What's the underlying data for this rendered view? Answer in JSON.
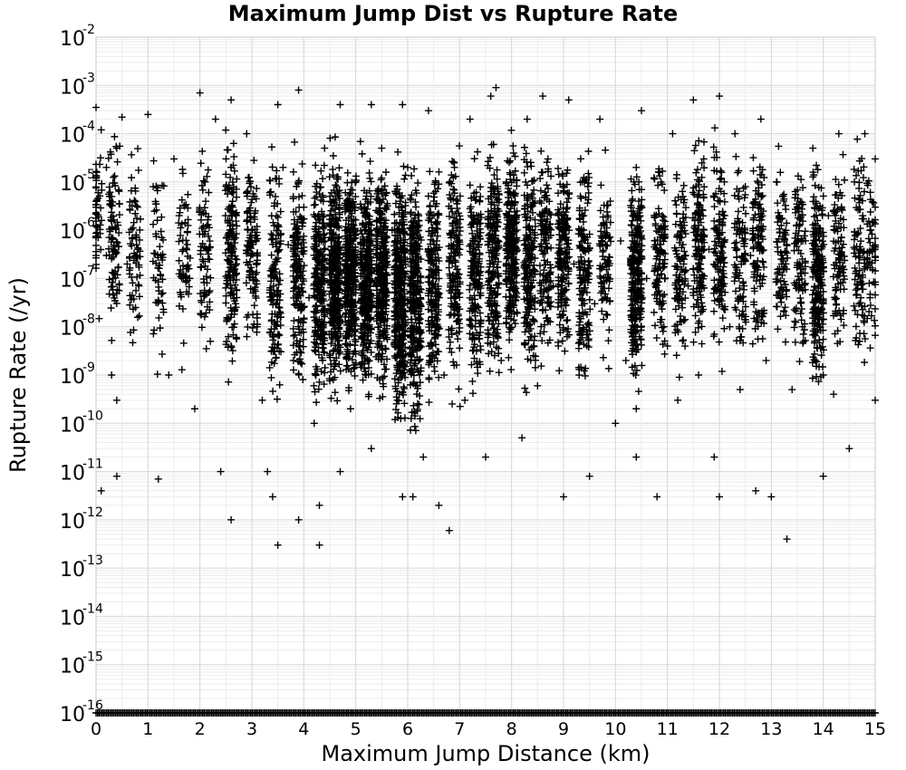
{
  "chart_data": {
    "type": "scatter",
    "title": "Maximum Jump Dist vs Rupture Rate",
    "xlabel": "Maximum Jump Distance (km)",
    "ylabel": "Rupture Rate (/yr)",
    "xlim": [
      0,
      15
    ],
    "ylim": [
      1e-16,
      0.01
    ],
    "y_scale": "log",
    "grid": true,
    "marker": "+",
    "marker_color": "#000000",
    "x_ticks": [
      "0",
      "1",
      "2",
      "3",
      "4",
      "5",
      "6",
      "7",
      "8",
      "9",
      "10",
      "11",
      "12",
      "13",
      "14",
      "15"
    ],
    "y_ticks": [
      {
        "base": "10",
        "exp": "-2"
      },
      {
        "base": "10",
        "exp": "-3"
      },
      {
        "base": "10",
        "exp": "-4"
      },
      {
        "base": "10",
        "exp": "-5"
      },
      {
        "base": "10",
        "exp": "-6"
      },
      {
        "base": "10",
        "exp": "-7"
      },
      {
        "base": "10",
        "exp": "-8"
      },
      {
        "base": "10",
        "exp": "-9"
      },
      {
        "base": "10",
        "exp": "-10"
      },
      {
        "base": "10",
        "exp": "-11"
      },
      {
        "base": "10",
        "exp": "-12"
      },
      {
        "base": "10",
        "exp": "-13"
      },
      {
        "base": "10",
        "exp": "-14"
      },
      {
        "base": "10",
        "exp": "-15"
      },
      {
        "base": "10",
        "exp": "-16"
      }
    ],
    "series": [
      {
        "points": [
          [
            0.0,
            0.00035
          ],
          [
            0.1,
            0.00012
          ],
          [
            0.2,
            2e-05
          ],
          [
            0.3,
            5e-06
          ],
          [
            0.4,
            5e-05
          ],
          [
            0.5,
            0.00022
          ],
          [
            0.2,
            3e-07
          ],
          [
            0.3,
            1e-09
          ],
          [
            0.4,
            3e-10
          ],
          [
            0.1,
            4e-12
          ],
          [
            0.4,
            8e-12
          ],
          [
            0.6,
            2e-07
          ],
          [
            0.8,
            3e-06
          ],
          [
            1.0,
            0.00025
          ],
          [
            1.1,
            8e-06
          ],
          [
            1.2,
            7e-12
          ],
          [
            1.3,
            2e-08
          ],
          [
            1.4,
            1e-09
          ],
          [
            1.5,
            3e-05
          ],
          [
            1.6,
            2e-06
          ],
          [
            1.8,
            1e-07
          ],
          [
            1.9,
            2e-10
          ],
          [
            2.0,
            0.0007
          ],
          [
            2.1,
            1e-05
          ],
          [
            2.2,
            5e-09
          ],
          [
            2.3,
            0.0002
          ],
          [
            2.4,
            1e-11
          ],
          [
            2.6,
            0.0005
          ],
          [
            2.6,
            1e-12
          ],
          [
            2.6,
            2e-05
          ],
          [
            2.6,
            3e-07
          ],
          [
            2.6,
            4e-09
          ],
          [
            2.7,
            2e-06
          ],
          [
            2.9,
            0.0001
          ],
          [
            3.0,
            1e-06
          ],
          [
            3.1,
            1e-08
          ],
          [
            3.2,
            3e-10
          ],
          [
            3.3,
            1e-11
          ],
          [
            3.4,
            3e-12
          ],
          [
            3.5,
            3e-13
          ],
          [
            3.5,
            0.0004
          ],
          [
            3.6,
            2e-05
          ],
          [
            3.7,
            5e-07
          ],
          [
            3.8,
            2e-09
          ],
          [
            3.9,
            0.0008
          ],
          [
            3.9,
            1e-12
          ],
          [
            4.0,
            3e-06
          ],
          [
            4.1,
            4e-08
          ],
          [
            4.2,
            1e-10
          ],
          [
            4.3,
            2e-12
          ],
          [
            4.3,
            3e-13
          ],
          [
            4.4,
            5e-05
          ],
          [
            4.5,
            2e-07
          ],
          [
            4.6,
            8e-09
          ],
          [
            4.7,
            0.0004
          ],
          [
            4.7,
            1e-11
          ],
          [
            4.8,
            6e-06
          ],
          [
            4.9,
            2e-10
          ],
          [
            5.0,
            1e-05
          ],
          [
            5.0,
            5e-08
          ],
          [
            5.1,
            3e-06
          ],
          [
            5.2,
            1e-09
          ],
          [
            5.3,
            0.0004
          ],
          [
            5.3,
            3e-11
          ],
          [
            5.4,
            2e-07
          ],
          [
            5.5,
            5e-05
          ],
          [
            5.6,
            6e-09
          ],
          [
            5.7,
            1e-06
          ],
          [
            5.8,
            3e-10
          ],
          [
            5.9,
            0.0004
          ],
          [
            5.9,
            3e-12
          ],
          [
            6.0,
            2e-05
          ],
          [
            6.0,
            3e-08
          ],
          [
            6.1,
            8e-07
          ],
          [
            6.1,
            3e-12
          ],
          [
            6.2,
            5e-09
          ],
          [
            6.3,
            2e-11
          ],
          [
            6.4,
            0.0003
          ],
          [
            6.5,
            4e-06
          ],
          [
            6.6,
            1e-07
          ],
          [
            6.6,
            2e-12
          ],
          [
            6.7,
            1e-09
          ],
          [
            6.8,
            6e-13
          ],
          [
            6.9,
            2e-05
          ],
          [
            7.0,
            4e-07
          ],
          [
            7.1,
            3e-10
          ],
          [
            7.2,
            0.0002
          ],
          [
            7.3,
            1e-08
          ],
          [
            7.4,
            5e-06
          ],
          [
            7.5,
            2e-11
          ],
          [
            7.6,
            0.0006
          ],
          [
            7.7,
            0.0009
          ],
          [
            7.7,
            3e-07
          ],
          [
            7.8,
            2e-09
          ],
          [
            7.9,
            1e-05
          ],
          [
            8.0,
            4e-06
          ],
          [
            8.1,
            2e-08
          ],
          [
            8.2,
            5e-11
          ],
          [
            8.3,
            0.0002
          ],
          [
            8.4,
            1e-06
          ],
          [
            8.5,
            6e-10
          ],
          [
            8.6,
            0.0006
          ],
          [
            8.7,
            3e-05
          ],
          [
            8.8,
            7e-08
          ],
          [
            8.9,
            4e-09
          ],
          [
            9.0,
            2e-06
          ],
          [
            9.0,
            3e-12
          ],
          [
            9.1,
            0.0005
          ],
          [
            9.2,
            2e-07
          ],
          [
            9.3,
            1e-09
          ],
          [
            9.4,
            1e-05
          ],
          [
            9.5,
            8e-12
          ],
          [
            9.6,
            3e-08
          ],
          [
            9.7,
            0.0002
          ],
          [
            9.9,
            4e-06
          ],
          [
            10.0,
            1e-10
          ],
          [
            10.1,
            6e-07
          ],
          [
            10.2,
            2e-09
          ],
          [
            10.4,
            2e-05
          ],
          [
            10.4,
            1e-06
          ],
          [
            10.4,
            5e-08
          ],
          [
            10.4,
            3e-09
          ],
          [
            10.4,
            2e-10
          ],
          [
            10.4,
            2e-11
          ],
          [
            10.5,
            0.0003
          ],
          [
            10.6,
            1e-07
          ],
          [
            10.8,
            3e-12
          ],
          [
            10.9,
            2e-06
          ],
          [
            11.0,
            4e-09
          ],
          [
            11.1,
            0.0001
          ],
          [
            11.2,
            3e-10
          ],
          [
            11.3,
            5e-06
          ],
          [
            11.4,
            7e-08
          ],
          [
            11.5,
            0.0005
          ],
          [
            11.6,
            1e-09
          ],
          [
            11.7,
            3e-05
          ],
          [
            11.8,
            4e-07
          ],
          [
            11.9,
            2e-11
          ],
          [
            12.0,
            0.0006
          ],
          [
            12.0,
            3e-12
          ],
          [
            12.1,
            2e-06
          ],
          [
            12.2,
            1e-08
          ],
          [
            12.3,
            0.0001
          ],
          [
            12.4,
            5e-10
          ],
          [
            12.5,
            8e-06
          ],
          [
            12.6,
            3e-07
          ],
          [
            12.7,
            4e-12
          ],
          [
            12.8,
            0.0002
          ],
          [
            12.9,
            2e-09
          ],
          [
            13.0,
            3e-12
          ],
          [
            13.1,
            1e-05
          ],
          [
            13.2,
            2e-07
          ],
          [
            13.3,
            4e-13
          ],
          [
            13.4,
            5e-10
          ],
          [
            13.5,
            3e-06
          ],
          [
            13.6,
            1e-08
          ],
          [
            13.8,
            5e-05
          ],
          [
            13.9,
            1e-07
          ],
          [
            14.0,
            1e-09
          ],
          [
            14.0,
            8e-12
          ],
          [
            14.1,
            2e-06
          ],
          [
            14.2,
            4e-10
          ],
          [
            14.3,
            0.0001
          ],
          [
            14.4,
            6e-08
          ],
          [
            14.5,
            3e-11
          ],
          [
            14.6,
            1e-05
          ],
          [
            14.7,
            5e-09
          ],
          [
            14.8,
            0.0001
          ],
          [
            14.9,
            1e-06
          ],
          [
            14.9,
            4e-08
          ],
          [
            15.0,
            3e-10
          ],
          [
            15.0,
            3e-05
          ]
        ]
      }
    ],
    "clusters": [
      {
        "x": 0.0,
        "ymin": 1e-09,
        "ymax": 0.0004,
        "count": 50
      },
      {
        "x": 0.35,
        "ymin": 1e-10,
        "ymax": 0.0003,
        "count": 90
      },
      {
        "x": 0.75,
        "ymin": 1e-10,
        "ymax": 0.0002,
        "count": 70
      },
      {
        "x": 1.2,
        "ymin": 1e-10,
        "ymax": 0.0001,
        "count": 55
      },
      {
        "x": 1.7,
        "ymin": 1e-10,
        "ymax": 0.0001,
        "count": 60
      },
      {
        "x": 2.1,
        "ymin": 1e-10,
        "ymax": 0.0002,
        "count": 80
      },
      {
        "x": 2.6,
        "ymin": 1e-11,
        "ymax": 0.0003,
        "count": 170
      },
      {
        "x": 3.0,
        "ymin": 1e-10,
        "ymax": 0.0002,
        "count": 110
      },
      {
        "x": 3.45,
        "ymin": 1e-11,
        "ymax": 0.0001,
        "count": 150
      },
      {
        "x": 3.9,
        "ymin": 1e-11,
        "ymax": 0.0001,
        "count": 170
      },
      {
        "x": 4.3,
        "ymin": 1e-11,
        "ymax": 8e-05,
        "count": 260
      },
      {
        "x": 4.6,
        "ymin": 1e-11,
        "ymax": 0.0001,
        "count": 340
      },
      {
        "x": 4.9,
        "ymin": 1e-11,
        "ymax": 0.0001,
        "count": 340
      },
      {
        "x": 5.2,
        "ymin": 1e-11,
        "ymax": 0.0001,
        "count": 330
      },
      {
        "x": 5.5,
        "ymin": 1e-11,
        "ymax": 0.0001,
        "count": 320
      },
      {
        "x": 5.85,
        "ymin": 1e-12,
        "ymax": 0.0001,
        "count": 380
      },
      {
        "x": 6.15,
        "ymin": 1e-12,
        "ymax": 0.0001,
        "count": 320
      },
      {
        "x": 6.5,
        "ymin": 1e-11,
        "ymax": 0.0001,
        "count": 210
      },
      {
        "x": 6.9,
        "ymin": 1e-11,
        "ymax": 0.0002,
        "count": 170
      },
      {
        "x": 7.3,
        "ymin": 1e-11,
        "ymax": 0.0002,
        "count": 180
      },
      {
        "x": 7.65,
        "ymin": 1e-11,
        "ymax": 0.0004,
        "count": 210
      },
      {
        "x": 8.0,
        "ymin": 1e-10,
        "ymax": 0.0002,
        "count": 260
      },
      {
        "x": 8.35,
        "ymin": 1e-11,
        "ymax": 0.0002,
        "count": 200
      },
      {
        "x": 8.65,
        "ymin": 1e-10,
        "ymax": 0.0001,
        "count": 140
      },
      {
        "x": 9.0,
        "ymin": 1e-10,
        "ymax": 0.0001,
        "count": 180
      },
      {
        "x": 9.4,
        "ymin": 1e-11,
        "ymax": 0.0001,
        "count": 150
      },
      {
        "x": 9.8,
        "ymin": 1e-10,
        "ymax": 0.0001,
        "count": 90
      },
      {
        "x": 10.4,
        "ymin": 2e-11,
        "ymax": 0.0001,
        "count": 270
      },
      {
        "x": 10.85,
        "ymin": 1e-10,
        "ymax": 0.0001,
        "count": 120
      },
      {
        "x": 11.25,
        "ymin": 1e-10,
        "ymax": 0.0001,
        "count": 110
      },
      {
        "x": 11.6,
        "ymin": 1e-10,
        "ymax": 0.0002,
        "count": 150
      },
      {
        "x": 12.0,
        "ymin": 1e-10,
        "ymax": 0.0002,
        "count": 130
      },
      {
        "x": 12.4,
        "ymin": 1e-10,
        "ymax": 0.0001,
        "count": 100
      },
      {
        "x": 12.75,
        "ymin": 1e-10,
        "ymax": 0.0002,
        "count": 120
      },
      {
        "x": 13.2,
        "ymin": 1e-10,
        "ymax": 0.0001,
        "count": 90
      },
      {
        "x": 13.55,
        "ymin": 1e-10,
        "ymax": 0.0001,
        "count": 100
      },
      {
        "x": 13.9,
        "ymin": 1e-11,
        "ymax": 0.0001,
        "count": 230
      },
      {
        "x": 14.3,
        "ymin": 1e-10,
        "ymax": 0.0001,
        "count": 100
      },
      {
        "x": 14.7,
        "ymin": 1e-10,
        "ymax": 0.0001,
        "count": 100
      },
      {
        "x": 14.95,
        "ymin": 1e-10,
        "ymax": 0.0001,
        "count": 60
      }
    ],
    "floor_value": 1e-16,
    "floor_count": 520
  }
}
